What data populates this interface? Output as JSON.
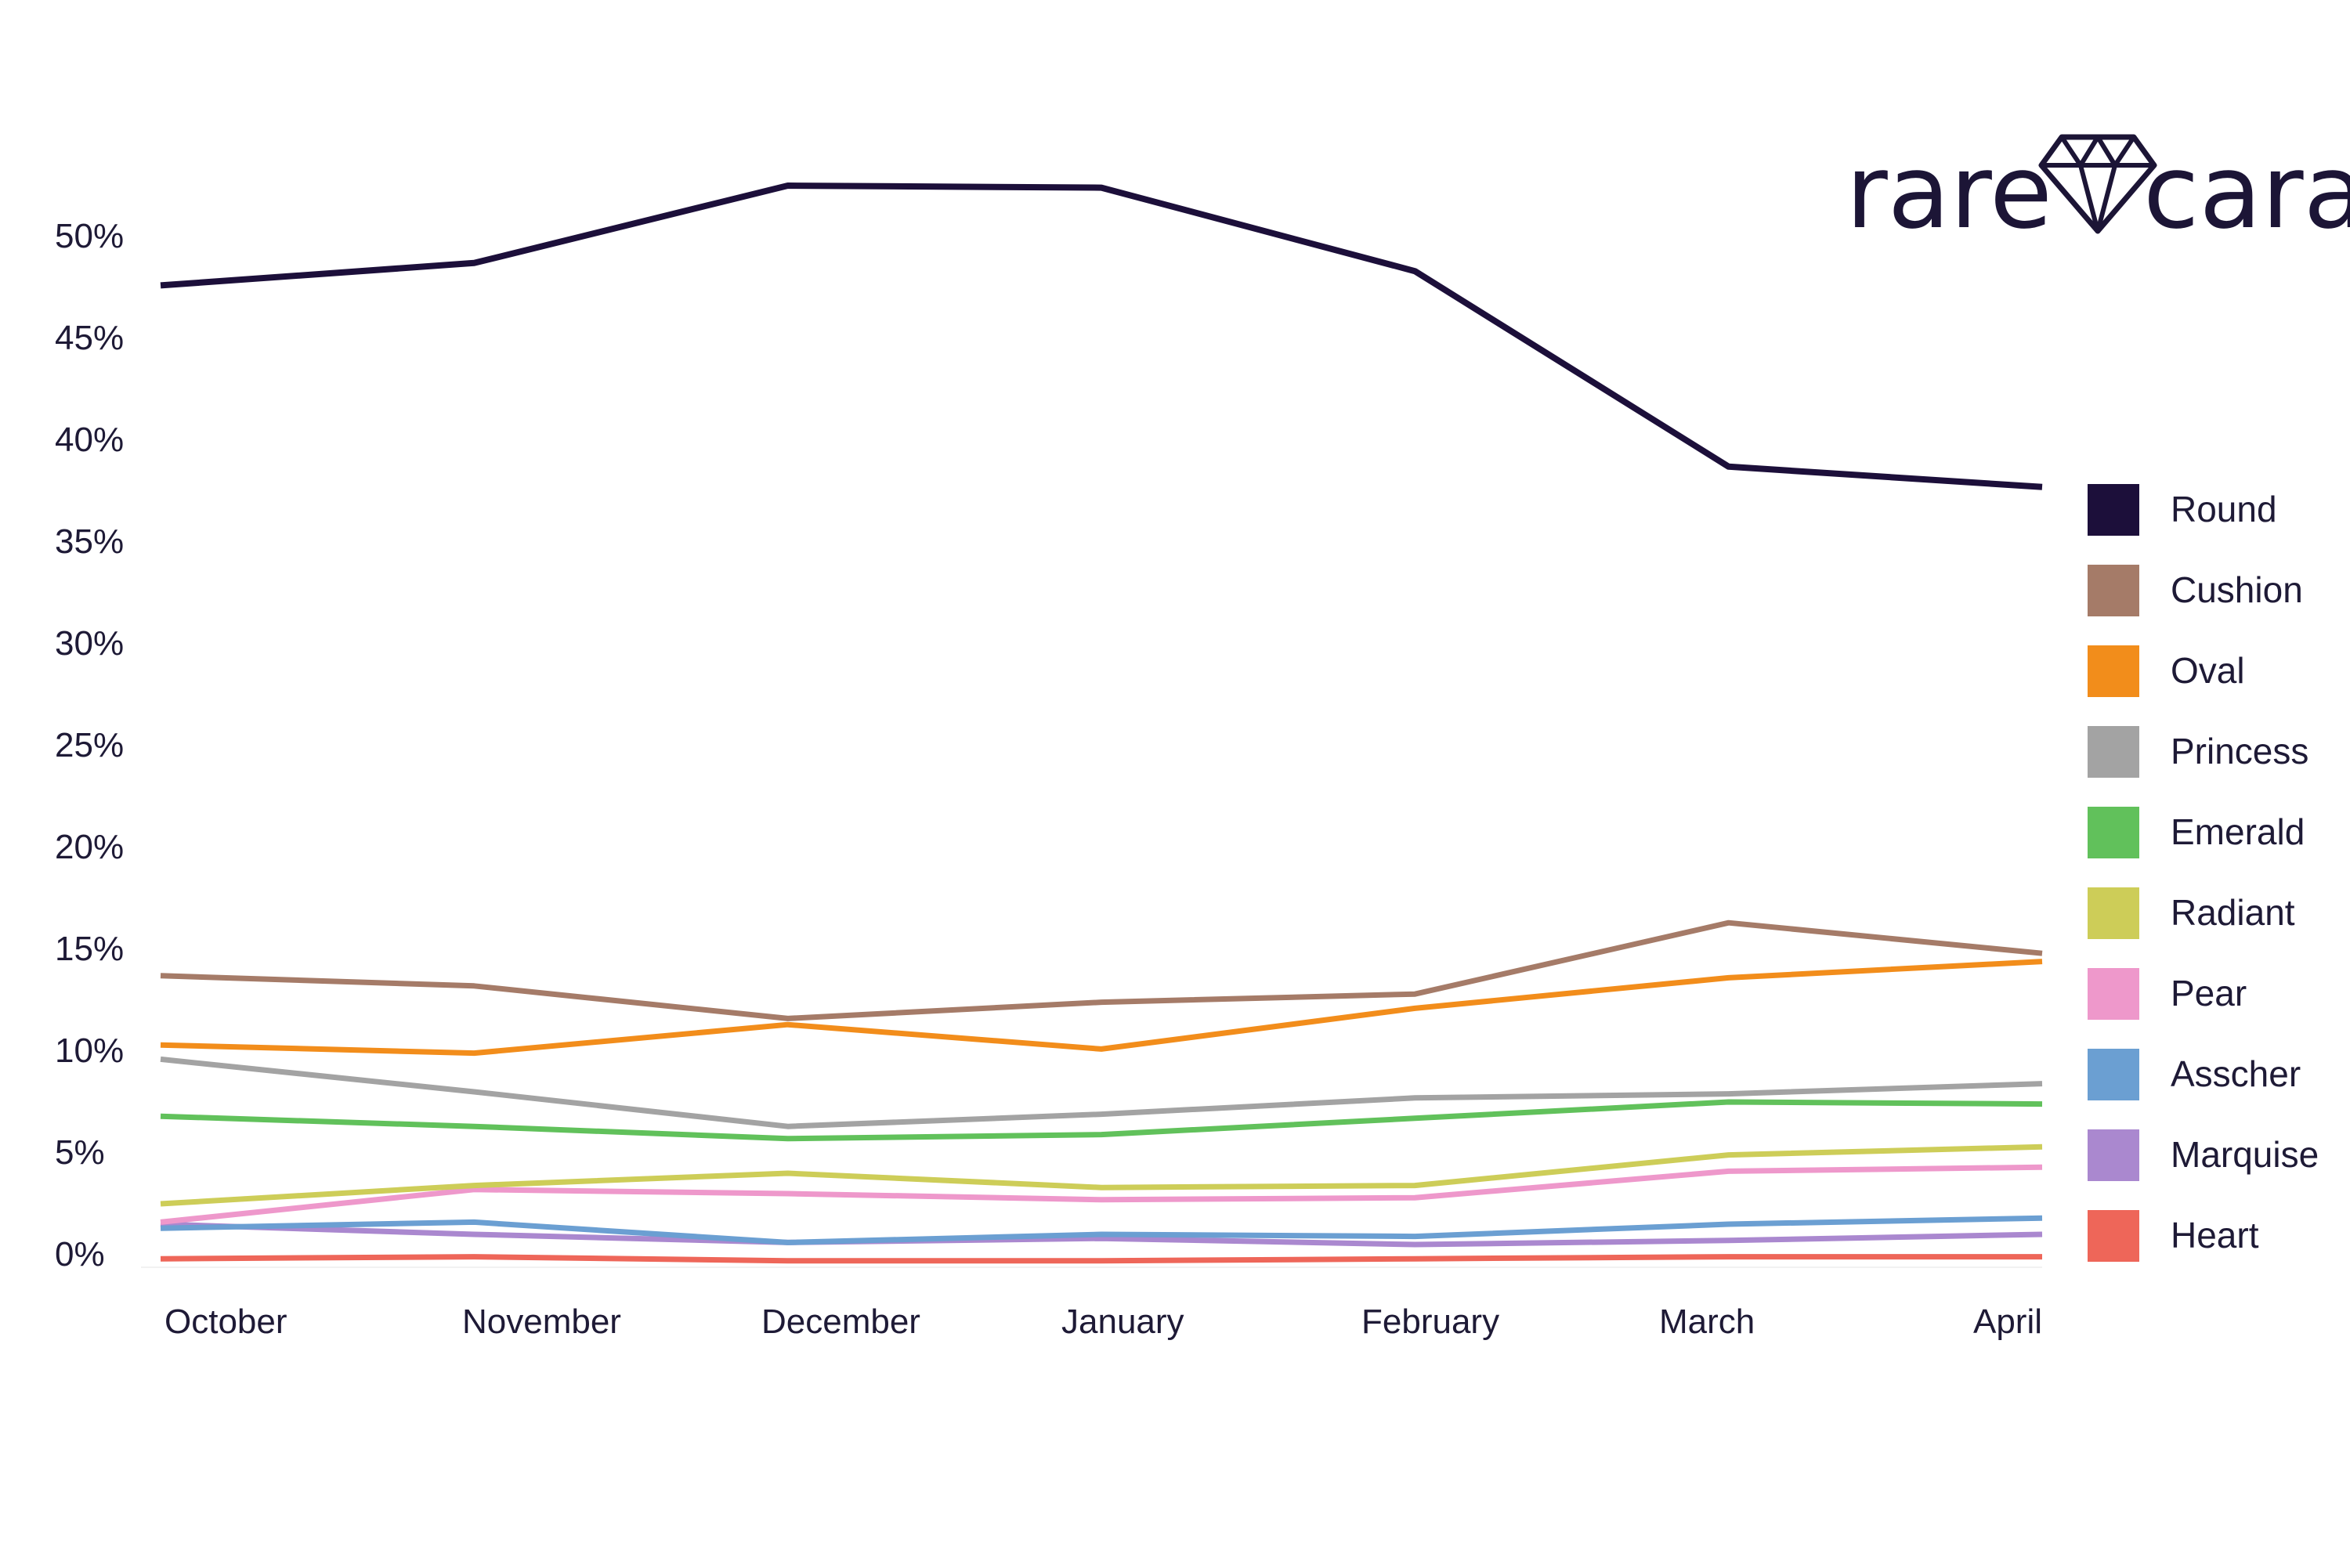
{
  "brand": {
    "logo_left": "rare",
    "logo_right": "carat",
    "logo_icon": "diamond-icon",
    "logo_color": "#1c1536"
  },
  "chart_data": {
    "type": "line",
    "categories": [
      "October",
      "November",
      "December",
      "January",
      "February",
      "March",
      "April"
    ],
    "ylim": [
      0,
      55
    ],
    "yticks": [
      0,
      5,
      10,
      15,
      20,
      25,
      30,
      35,
      40,
      45,
      50
    ],
    "ytick_labels": [
      "0%",
      "5%",
      "10%",
      "15%",
      "20%",
      "25%",
      "30%",
      "35%",
      "40%",
      "45%",
      "50%"
    ],
    "grid": false,
    "legend_position": "right",
    "series": [
      {
        "name": "Round",
        "color": "#1c0f3a",
        "values": [
          47.6,
          48.7,
          52.5,
          52.4,
          48.3,
          38.7,
          37.7
        ]
      },
      {
        "name": "Cushion",
        "color": "#a57b68",
        "values": [
          13.7,
          13.2,
          11.6,
          12.4,
          12.8,
          16.3,
          14.8
        ]
      },
      {
        "name": "Oval",
        "color": "#f28d1b",
        "values": [
          10.3,
          9.9,
          11.3,
          10.1,
          12.1,
          13.6,
          14.4
        ]
      },
      {
        "name": "Princess",
        "color": "#a3a3a3",
        "values": [
          9.6,
          8.0,
          6.3,
          6.9,
          7.7,
          7.9,
          8.4
        ]
      },
      {
        "name": "Emerald",
        "color": "#61c15b",
        "values": [
          6.8,
          6.3,
          5.7,
          5.9,
          6.7,
          7.5,
          7.4
        ]
      },
      {
        "name": "Radiant",
        "color": "#cdcd58",
        "values": [
          2.5,
          3.4,
          4.0,
          3.3,
          3.4,
          4.9,
          5.3
        ]
      },
      {
        "name": "Pear",
        "color": "#ee98cb",
        "values": [
          1.6,
          3.2,
          3.0,
          2.7,
          2.8,
          4.1,
          4.3
        ]
      },
      {
        "name": "Asscher",
        "color": "#6b9fd2",
        "values": [
          1.3,
          1.6,
          0.6,
          1.0,
          0.9,
          1.5,
          1.8
        ]
      },
      {
        "name": "Marquise",
        "color": "#aa88cf",
        "values": [
          1.5,
          1.0,
          0.6,
          0.8,
          0.5,
          0.7,
          1.0
        ]
      },
      {
        "name": "Heart",
        "color": "#ee6659",
        "values": [
          -0.2,
          -0.1,
          -0.3,
          -0.3,
          -0.2,
          -0.1,
          -0.1
        ]
      }
    ]
  }
}
